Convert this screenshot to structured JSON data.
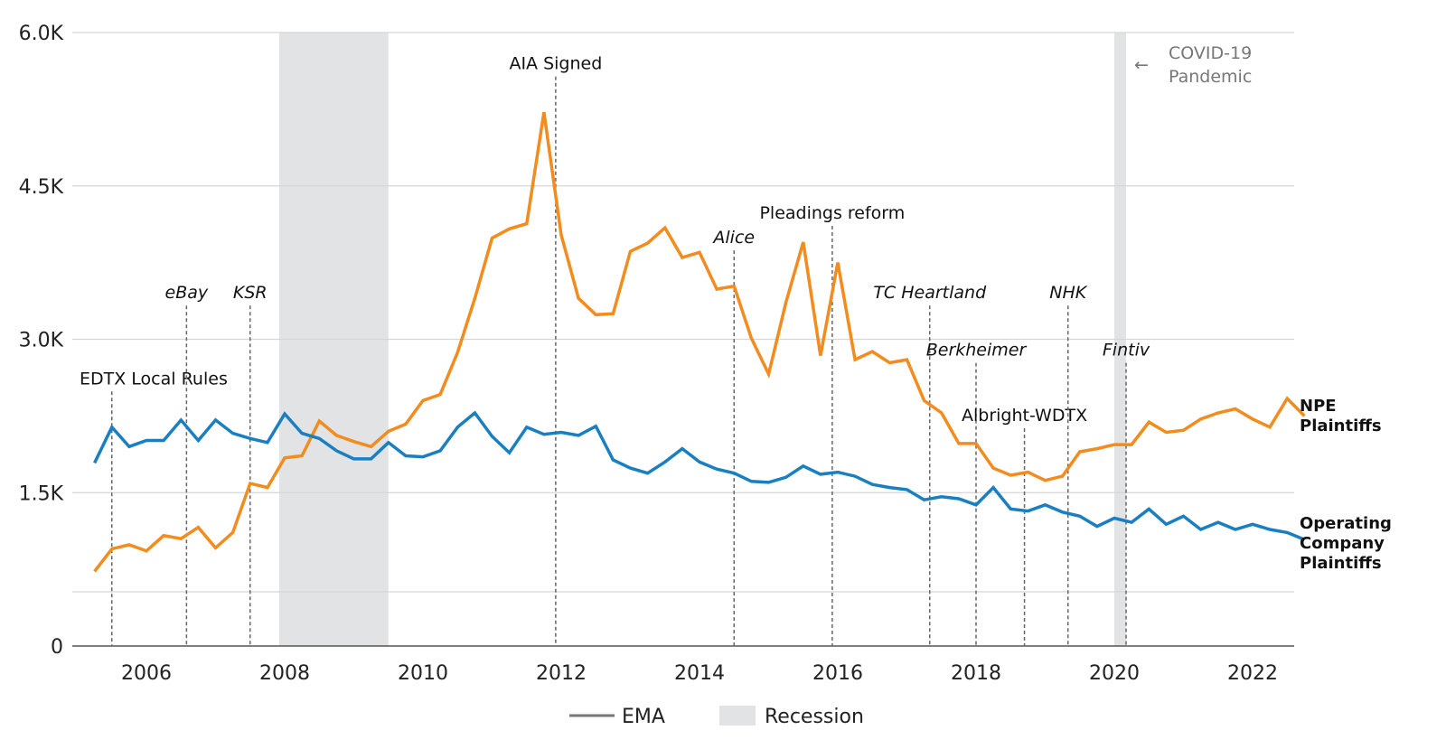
{
  "chart_data": {
    "type": "line",
    "title": "",
    "xlabel": "",
    "ylabel": "",
    "ylim": [
      0,
      6000
    ],
    "xlim": [
      2005.25,
      2022.75
    ],
    "y_ticks": [
      {
        "value": 0,
        "label": "0"
      },
      {
        "value": 1500,
        "label": "1.5K"
      },
      {
        "value": 3000,
        "label": "3.0K"
      },
      {
        "value": 4500,
        "label": "4.5K"
      },
      {
        "value": 6000,
        "label": "6.0K"
      }
    ],
    "x_ticks": [
      {
        "value": 2006,
        "label": "2006"
      },
      {
        "value": 2008,
        "label": "2008"
      },
      {
        "value": 2010,
        "label": "2010"
      },
      {
        "value": 2012,
        "label": "2012"
      },
      {
        "value": 2014,
        "label": "2014"
      },
      {
        "value": 2016,
        "label": "2016"
      },
      {
        "value": 2018,
        "label": "2018"
      },
      {
        "value": 2020,
        "label": "2020"
      },
      {
        "value": 2022,
        "label": "2022"
      }
    ],
    "grid": true,
    "x_start": 2005.25,
    "x_step": 0.25,
    "series": [
      {
        "name": "NPE Plaintiffs",
        "label_lines": [
          "NPE",
          "Plaintiffs"
        ],
        "color": "#F28C1E",
        "values": [
          730,
          950,
          990,
          930,
          1080,
          1050,
          1160,
          960,
          1110,
          1590,
          1550,
          1840,
          1860,
          2200,
          2060,
          2000,
          1950,
          2100,
          2170,
          2400,
          2460,
          2870,
          3400,
          3990,
          4080,
          4130,
          5220,
          4020,
          3400,
          3240,
          3250,
          3860,
          3940,
          4090,
          3800,
          3850,
          3490,
          3520,
          3010,
          2660,
          3360,
          3950,
          2840,
          3750,
          2800,
          2880,
          2770,
          2800,
          2400,
          2280,
          1980,
          1980,
          1740,
          1670,
          1700,
          1620,
          1660,
          1900,
          1930,
          1970,
          1970,
          2190,
          2090,
          2110,
          2220,
          2280,
          2320,
          2220,
          2140,
          2420,
          2250
        ]
      },
      {
        "name": "Operating Company Plaintiffs",
        "label_lines": [
          "Operating",
          "Company",
          "Plaintiffs"
        ],
        "color": "#1A7FC1",
        "values": [
          1790,
          2140,
          1950,
          2010,
          2010,
          2210,
          2010,
          2210,
          2080,
          2030,
          1990,
          2270,
          2080,
          2030,
          1910,
          1830,
          1830,
          1990,
          1860,
          1850,
          1910,
          2140,
          2280,
          2050,
          1890,
          2140,
          2070,
          2090,
          2060,
          2150,
          1820,
          1740,
          1690,
          1800,
          1930,
          1800,
          1730,
          1690,
          1610,
          1600,
          1650,
          1760,
          1680,
          1700,
          1660,
          1580,
          1550,
          1530,
          1430,
          1460,
          1440,
          1380,
          1550,
          1340,
          1320,
          1380,
          1310,
          1270,
          1170,
          1250,
          1210,
          1340,
          1190,
          1270,
          1140,
          1210,
          1140,
          1190,
          1140,
          1110,
          1040
        ]
      }
    ],
    "shaded_periods": [
      {
        "name": "Recession",
        "start": 2007.92,
        "end": 2009.5,
        "color": "#E2E3E5"
      },
      {
        "name": "COVID-19 Pandemic",
        "start": 2020.0,
        "end": 2020.17,
        "color": "#E2E3E5"
      }
    ],
    "annotations": [
      {
        "label": "EDTX Local Rules",
        "x": 2005.5,
        "italic": false,
        "label_value": 2560
      },
      {
        "label": "eBay",
        "x": 2006.58,
        "italic": true,
        "label_value": 3400
      },
      {
        "label": "KSR",
        "x": 2007.5,
        "italic": true,
        "label_value": 3400
      },
      {
        "label": "AIA Signed",
        "x": 2011.92,
        "italic": false,
        "label_value": 5640
      },
      {
        "label": "Alice",
        "x": 2014.5,
        "italic": true,
        "label_value": 3940
      },
      {
        "label": "Pleadings reform",
        "x": 2015.92,
        "italic": false,
        "label_value": 4180
      },
      {
        "label": "TC Heartland",
        "x": 2017.33,
        "italic": true,
        "label_value": 3400
      },
      {
        "label": "Berkheimer",
        "x": 2018.0,
        "italic": true,
        "label_value": 2840
      },
      {
        "label": "Albright-WDTX",
        "x": 2018.7,
        "italic": false,
        "label_value": 2200
      },
      {
        "label": "NHK",
        "x": 2019.33,
        "italic": true,
        "label_value": 3400
      },
      {
        "label": "Fintiv",
        "x": 2020.17,
        "italic": true,
        "label_value": 2840
      }
    ],
    "covid_note": {
      "line1": "COVID-19",
      "line2": "Pandemic",
      "arrow": "←"
    },
    "legend": {
      "position": "bottom-center",
      "items": [
        {
          "label": "EMA",
          "kind": "line",
          "color": "#777777"
        },
        {
          "label": "Recession",
          "kind": "box",
          "color": "#E2E3E5"
        }
      ]
    }
  }
}
